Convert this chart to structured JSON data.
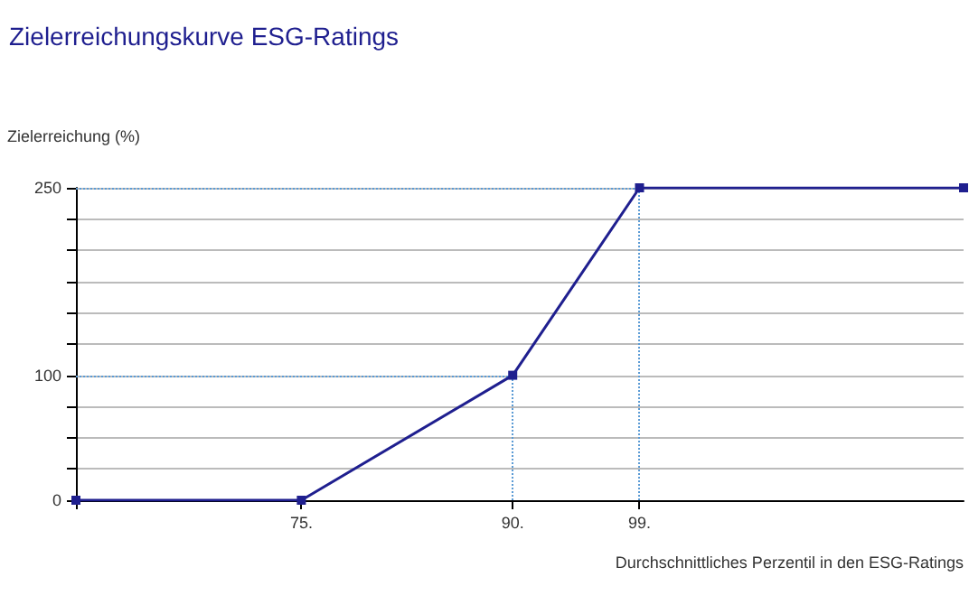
{
  "chart_data": {
    "type": "line",
    "title": "Zielerreichungskurve ESG-Ratings",
    "ylabel": "Zielerreichung (%)",
    "xlabel": "Durchschnittliches Perzentil in den ESG-Ratings",
    "series": [
      {
        "color": "#1f1f8f",
        "x": [
          59,
          75,
          90,
          99,
          122
        ],
        "values": [
          0,
          0,
          100,
          250,
          250
        ]
      }
    ],
    "xlim": [
      59,
      122
    ],
    "xticks": [
      {
        "value": 75,
        "label": "75."
      },
      {
        "value": 90,
        "label": "90."
      },
      {
        "value": 99,
        "label": "99."
      }
    ],
    "ylim": [
      0,
      250
    ],
    "yticks": [
      0,
      {
        "value": 25,
        "label": null
      },
      {
        "value": 50,
        "label": null
      },
      {
        "value": 75,
        "label": null
      },
      100,
      {
        "value": 125,
        "label": null
      },
      {
        "value": 150,
        "label": null
      },
      {
        "value": 175,
        "label": null
      },
      {
        "value": 200,
        "label": null
      },
      {
        "value": 225,
        "label": null
      },
      250
    ],
    "grid": "y",
    "marker": "square",
    "line_style": "solid",
    "ref_lines": [
      {
        "axis": "y",
        "value": 100,
        "color": "#5b9bd5",
        "line_style": "dotted"
      },
      {
        "axis": "y",
        "value": 250,
        "color": "#5b9bd5",
        "line_style": "dotted"
      },
      {
        "axis": "x",
        "value": 90,
        "color": "#5b9bd5",
        "line_style": "dotted"
      },
      {
        "axis": "x",
        "value": 99,
        "color": "#5b9bd5",
        "line_style": "dotted"
      }
    ]
  }
}
